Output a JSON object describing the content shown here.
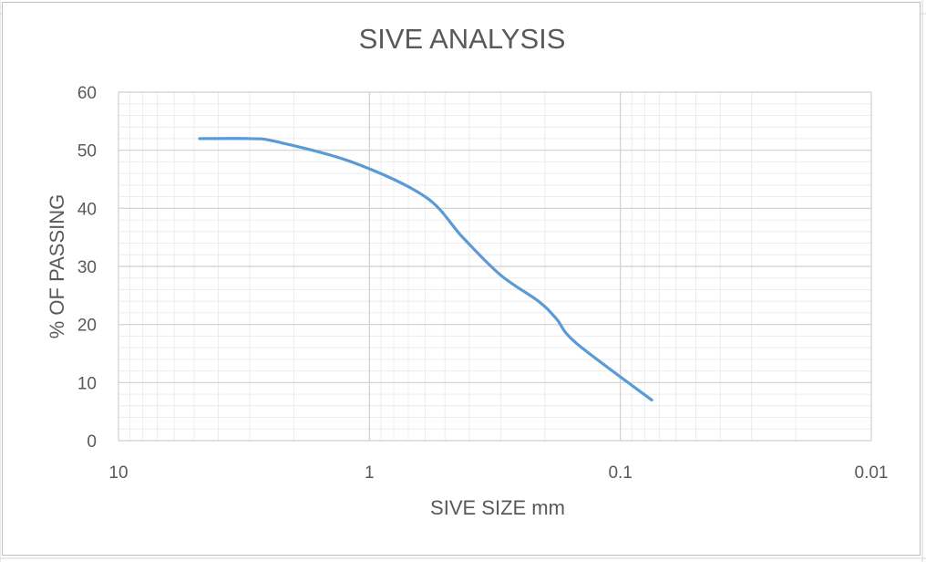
{
  "chart_data": {
    "type": "line",
    "title": "SIVE ANALYSIS",
    "xlabel": "SIVE SIZE mm",
    "ylabel": "% OF PASSING",
    "x_scale": "log",
    "x_reversed": true,
    "xlim": [
      10,
      0.01
    ],
    "ylim": [
      0,
      60
    ],
    "x_ticks": [
      "10",
      "1",
      "0.1",
      "0.01"
    ],
    "y_ticks": [
      "0",
      "10",
      "20",
      "30",
      "40",
      "50",
      "60"
    ],
    "grid": true,
    "legend": "none",
    "series": [
      {
        "color": "#5b9bd5",
        "x": [
          4.75,
          3.0,
          2.36,
          1.18,
          0.6,
          0.425,
          0.3,
          0.212,
          0.18,
          0.15,
          0.075
        ],
        "y": [
          52,
          52,
          51.5,
          48,
          42,
          35,
          28.5,
          24,
          21,
          16.8,
          7
        ]
      }
    ]
  }
}
